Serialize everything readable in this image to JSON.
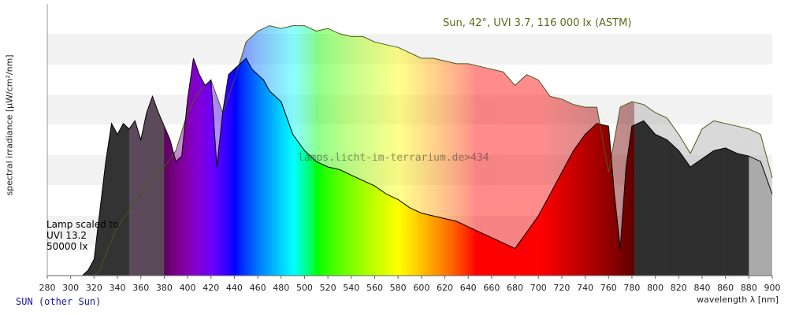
{
  "chart_data": {
    "type": "area",
    "xlabel": "wavelength λ [nm]",
    "ylabel": "spectral irradiance [µW/cm²/nm]",
    "xlim": [
      280,
      900
    ],
    "x_ticks": [
      280,
      300,
      320,
      340,
      360,
      380,
      400,
      420,
      440,
      460,
      480,
      500,
      520,
      540,
      560,
      580,
      600,
      620,
      640,
      660,
      680,
      700,
      720,
      740,
      760,
      780,
      800,
      820,
      840,
      860,
      880,
      900
    ],
    "y_ticks_shown": false,
    "grid": "horizontal-bands",
    "series": [
      {
        "name": "Sun, 42°, UVI 3.7, 116 000 lx (ASTM)",
        "style": "light filled area, dark outline",
        "x": [
          280,
          290,
          300,
          305,
          310,
          315,
          320,
          325,
          330,
          340,
          350,
          360,
          370,
          380,
          390,
          400,
          410,
          420,
          430,
          440,
          450,
          460,
          470,
          480,
          490,
          500,
          510,
          520,
          530,
          540,
          550,
          560,
          570,
          580,
          590,
          600,
          610,
          620,
          630,
          640,
          650,
          660,
          670,
          680,
          690,
          700,
          710,
          720,
          730,
          740,
          750,
          760,
          770,
          780,
          790,
          800,
          810,
          820,
          830,
          840,
          850,
          860,
          870,
          880,
          890,
          900
        ],
        "values": [
          0,
          0,
          0,
          0,
          0,
          0,
          0,
          0.02,
          0.08,
          0.18,
          0.24,
          0.3,
          0.36,
          0.4,
          0.46,
          0.6,
          0.68,
          0.72,
          0.6,
          0.72,
          0.86,
          0.9,
          0.92,
          0.91,
          0.92,
          0.92,
          0.9,
          0.91,
          0.89,
          0.88,
          0.88,
          0.86,
          0.85,
          0.84,
          0.82,
          0.8,
          0.8,
          0.79,
          0.78,
          0.78,
          0.77,
          0.76,
          0.75,
          0.7,
          0.74,
          0.72,
          0.66,
          0.65,
          0.63,
          0.62,
          0.62,
          0.38,
          0.62,
          0.64,
          0.63,
          0.6,
          0.58,
          0.52,
          0.45,
          0.54,
          0.57,
          0.56,
          0.55,
          0.54,
          0.52,
          0.36
        ]
      },
      {
        "name": "Lamp scaled to UVI 13.2, 50000 lx",
        "style": "spectral colored area, black outline",
        "x": [
          280,
          300,
          310,
          315,
          320,
          325,
          330,
          335,
          340,
          345,
          350,
          355,
          360,
          365,
          370,
          375,
          380,
          385,
          390,
          395,
          400,
          405,
          410,
          415,
          420,
          425,
          430,
          435,
          440,
          445,
          450,
          455,
          460,
          465,
          470,
          480,
          490,
          500,
          510,
          520,
          530,
          540,
          550,
          560,
          570,
          580,
          590,
          600,
          610,
          620,
          630,
          640,
          650,
          660,
          670,
          680,
          690,
          700,
          710,
          720,
          730,
          740,
          750,
          760,
          765,
          770,
          775,
          780,
          790,
          800,
          810,
          820,
          830,
          840,
          850,
          860,
          870,
          880,
          890,
          900
        ],
        "values": [
          0,
          0,
          0,
          0.02,
          0.06,
          0.24,
          0.42,
          0.56,
          0.52,
          0.56,
          0.54,
          0.57,
          0.5,
          0.6,
          0.66,
          0.6,
          0.55,
          0.5,
          0.42,
          0.44,
          0.65,
          0.8,
          0.74,
          0.7,
          0.72,
          0.4,
          0.6,
          0.74,
          0.76,
          0.78,
          0.8,
          0.76,
          0.74,
          0.72,
          0.68,
          0.64,
          0.52,
          0.46,
          0.42,
          0.4,
          0.39,
          0.37,
          0.35,
          0.33,
          0.3,
          0.28,
          0.25,
          0.23,
          0.22,
          0.21,
          0.2,
          0.18,
          0.16,
          0.14,
          0.12,
          0.1,
          0.16,
          0.22,
          0.3,
          0.38,
          0.46,
          0.52,
          0.56,
          0.55,
          0.3,
          0.1,
          0.4,
          0.55,
          0.57,
          0.52,
          0.5,
          0.46,
          0.4,
          0.43,
          0.46,
          0.47,
          0.45,
          0.44,
          0.42,
          0.3
        ]
      }
    ],
    "annotations": {
      "sun_label": "Sun, 42°, UVI 3.7, 116 000 lx (ASTM)",
      "lamp_label": "Lamp scaled to\nUVI 13.2\n50000 lx",
      "watermark": "lamps.licht-im-terrarium.de>434",
      "footer": "SUN (other Sun)"
    },
    "colors": {
      "band_light": "#f2f2f2",
      "band_white": "#ffffff",
      "sun_outline": "#4a5a1a",
      "lamp_outline": "#000000",
      "uv_fill": "#333333",
      "ir_fill": "#2f2f2f",
      "ir_light": "#aaaaaa"
    }
  }
}
